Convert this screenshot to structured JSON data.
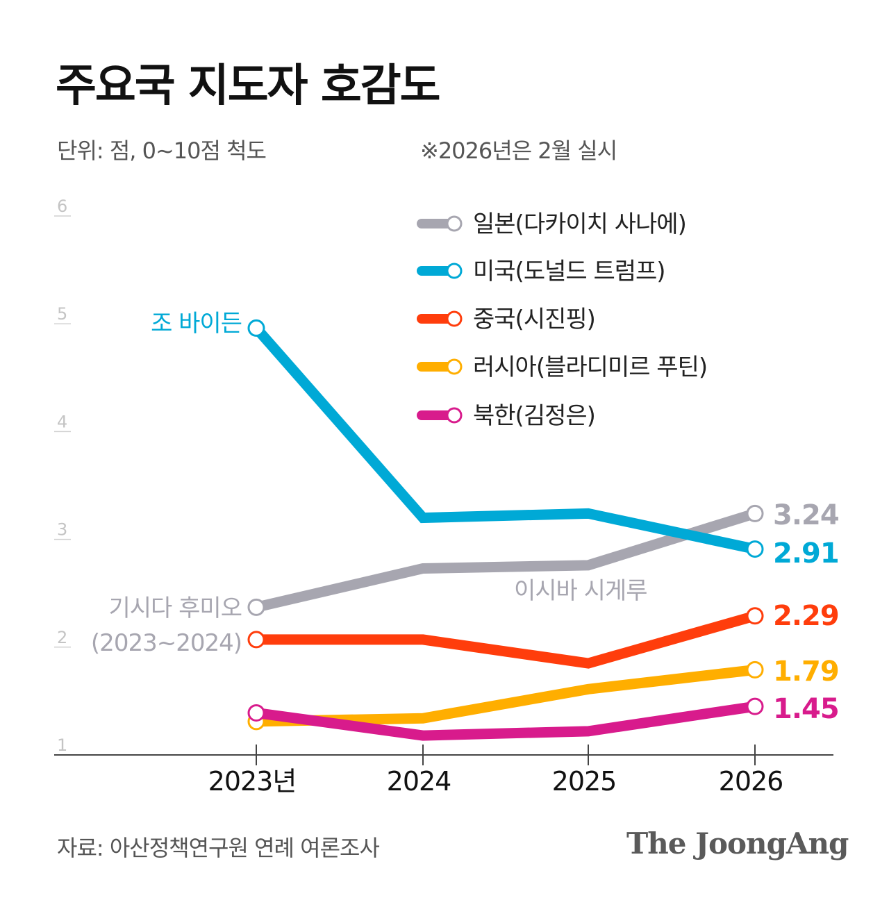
{
  "title": "주요국 지도자 호감도",
  "unit": "단위: 점, 0~10점 척도",
  "note": "※2026년은 2월 실시",
  "source": "자료: 아산정책연구원 연례 여론조사",
  "logo": "The JoongAng",
  "chart_data": {
    "type": "line",
    "x": [
      "2023년",
      "2024",
      "2025",
      "2026"
    ],
    "ylim": [
      1,
      6
    ],
    "yticks": [
      "1",
      "2",
      "3",
      "4",
      "5",
      "6"
    ],
    "grid": false,
    "legend_position": "top-right",
    "series": [
      {
        "name": "일본(다카이치 사나에)",
        "color": "#a7a6b0",
        "values": [
          2.37,
          2.73,
          2.76,
          3.24
        ],
        "end_label": "3.24"
      },
      {
        "name": "미국(도널드 트럼프)",
        "color": "#00a9d6",
        "values": [
          4.96,
          3.2,
          3.24,
          2.91
        ],
        "end_label": "2.91"
      },
      {
        "name": "중국(시진핑)",
        "color": "#ff3d0c",
        "values": [
          2.07,
          2.07,
          1.85,
          2.29
        ],
        "end_label": "2.29"
      },
      {
        "name": "러시아(블라디미르 푸틴)",
        "color": "#ffae00",
        "values": [
          1.31,
          1.34,
          1.61,
          1.79
        ],
        "end_label": "1.79"
      },
      {
        "name": "북한(김정은)",
        "color": "#d81b8c",
        "values": [
          1.39,
          1.18,
          1.22,
          1.45
        ],
        "end_label": "1.45"
      }
    ],
    "annotations": [
      {
        "text": "조 바이든",
        "color": "#00a9d6",
        "series": 1,
        "point": 0
      },
      {
        "text": "기시다 후미오",
        "color": "#a7a6b0",
        "series": 0,
        "point": 0
      },
      {
        "text": "(2023~2024)",
        "color": "#a7a6b0",
        "series": 0,
        "point": 0
      },
      {
        "text": "이시바 시게루",
        "color": "#a7a6b0",
        "series": 0,
        "point": 2
      }
    ]
  }
}
